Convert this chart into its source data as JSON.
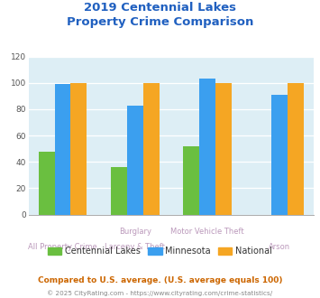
{
  "title_line1": "2019 Centennial Lakes",
  "title_line2": "Property Crime Comparison",
  "cat_labels_upper": [
    "",
    "Burglary",
    "Motor Vehicle Theft",
    ""
  ],
  "cat_labels_lower": [
    "All Property Crime",
    "Larceny & Theft",
    "",
    "Arson"
  ],
  "centennial_lakes": [
    48,
    36,
    52,
    null
  ],
  "minnesota": [
    99,
    83,
    103,
    91
  ],
  "national": [
    100,
    100,
    100,
    100
  ],
  "colors": {
    "centennial_lakes": "#6abf40",
    "minnesota": "#3b9fef",
    "national": "#f5a623"
  },
  "ylim": [
    0,
    120
  ],
  "yticks": [
    0,
    20,
    40,
    60,
    80,
    100,
    120
  ],
  "background_color": "#ddeef5",
  "title_color": "#2060c0",
  "xlabel_upper_color": "#bb99bb",
  "xlabel_lower_color": "#bb99bb",
  "legend_label1": "Centennial Lakes",
  "legend_label2": "Minnesota",
  "legend_label3": "National",
  "footnote1": "Compared to U.S. average. (U.S. average equals 100)",
  "footnote2": "© 2025 CityRating.com - https://www.cityrating.com/crime-statistics/",
  "footnote1_color": "#cc6600",
  "footnote2_color": "#888888",
  "bar_width": 0.2,
  "group_positions": [
    0.0,
    0.9,
    1.8,
    2.7
  ]
}
